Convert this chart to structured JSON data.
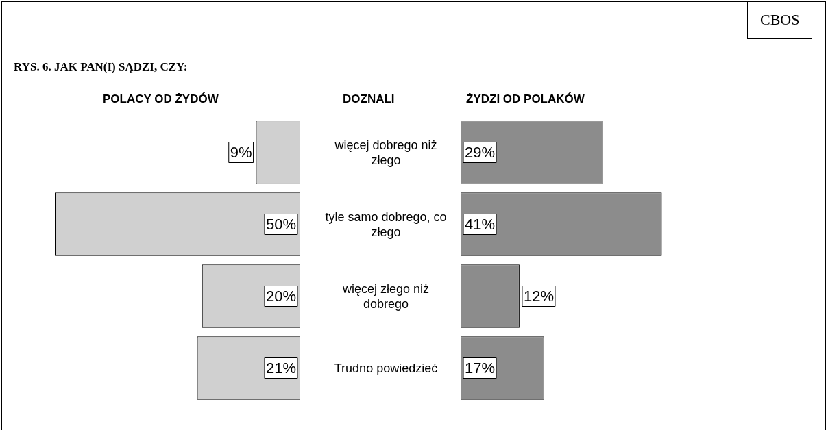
{
  "chart_data": [
    {
      "type": "bar",
      "orientation": "horizontal",
      "title": "RYS. 6. JAK PAN(I) SĄDZI, CZY:",
      "subtitle": "POLACY OD ŻYDÓW",
      "categories": [
        "więcej dobrego niż złego",
        "tyle samo dobrego, co złego",
        "więcej złego niż dobrego",
        "Trudno powiedzieć"
      ],
      "values": [
        9,
        50,
        20,
        21
      ],
      "value_labels": [
        "9%",
        "50%",
        "20%",
        "21%"
      ],
      "color": "#d0d0d0",
      "tick_labels": "y"
    },
    {
      "type": "bar",
      "orientation": "horizontal",
      "subtitle": "ŻYDZI OD POLAKÓW",
      "categories": [
        null,
        null,
        null,
        null
      ],
      "tick_labels": false,
      "values": [
        29,
        41,
        12,
        17
      ],
      "value_labels": [
        "29%",
        "41%",
        "12%",
        "17%"
      ],
      "color": "#8c8c8c",
      "annotations": [
        "DOZNALI",
        "CBOS"
      ]
    }
  ]
}
